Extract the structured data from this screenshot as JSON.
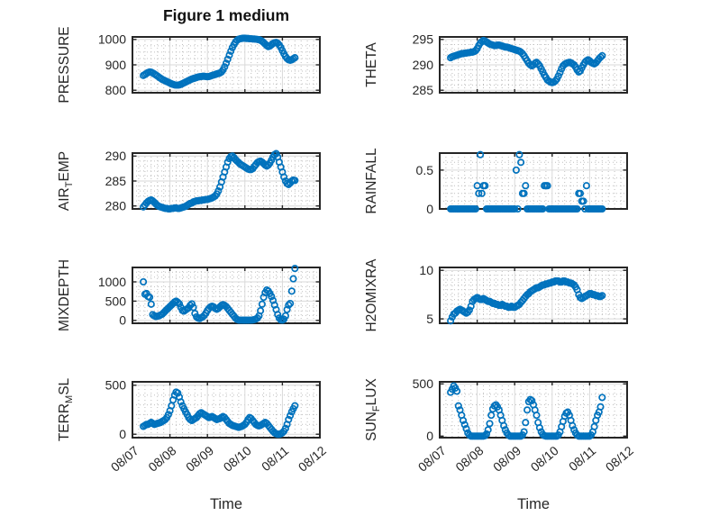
{
  "figure": {
    "title": "Figure 1 medium"
  },
  "colors": {
    "marker": "#0072BD",
    "axis": "#262626",
    "text": "#262626",
    "grid_major": "#d9d9d9",
    "grid_minor": "#bfbfbf"
  },
  "x_axis": {
    "label": "Time",
    "start_hour": 7,
    "step_hours": 1,
    "xlim_hours": [
      0,
      120
    ],
    "xminor_hours": 4,
    "tick_hours": [
      0,
      24,
      48,
      72,
      96,
      120
    ],
    "tick_labels": [
      "08/07",
      "08/08",
      "08/09",
      "08/10",
      "08/11",
      "08/12"
    ]
  },
  "chart_data": [
    {
      "type": "scatter",
      "name": "PRESSURE",
      "ylabel_parts": [
        {
          "text": "PRESSURE",
          "sub": false
        }
      ],
      "ylim": [
        790,
        1010
      ],
      "yticks": [
        800,
        900,
        1000
      ],
      "yminor": 25,
      "values": [
        858,
        862,
        866,
        870,
        872,
        871,
        868,
        864,
        860,
        856,
        851,
        847,
        843,
        840,
        837,
        834,
        831,
        828,
        825,
        823,
        821,
        820,
        820,
        821,
        823,
        826,
        829,
        832,
        835,
        838,
        841,
        844,
        846,
        848,
        850,
        852,
        853,
        854,
        855,
        855,
        854,
        853,
        854,
        856,
        858,
        860,
        862,
        864,
        866,
        868,
        872,
        880,
        892,
        906,
        922,
        938,
        954,
        968,
        980,
        990,
        997,
        1001,
        1003,
        1004,
        1005,
        1005,
        1004,
        1004,
        1003,
        1003,
        1002,
        1002,
        1001,
        1000,
        999,
        997,
        993,
        988,
        982,
        976,
        972,
        974,
        979,
        984,
        987,
        988,
        985,
        978,
        968,
        956,
        944,
        933,
        925,
        920,
        918,
        920,
        924,
        928
      ]
    },
    {
      "type": "scatter",
      "name": "THETA",
      "ylabel_parts": [
        {
          "text": "THETA",
          "sub": false
        }
      ],
      "ylim": [
        284.5,
        295.5
      ],
      "yticks": [
        285,
        290,
        295
      ],
      "yminor": 1,
      "values": [
        291.4,
        291.6,
        291.7,
        291.8,
        291.9,
        292,
        292.1,
        292.2,
        292.2,
        292.3,
        292.3,
        292.4,
        292.4,
        292.5,
        292.5,
        292.6,
        292.8,
        293.2,
        293.8,
        294.3,
        294.6,
        294.8,
        294.7,
        294.5,
        294.3,
        294.1,
        294,
        293.9,
        293.8,
        293.8,
        293.9,
        293.9,
        293.8,
        293.7,
        293.6,
        293.5,
        293.5,
        293.4,
        293.3,
        293.2,
        293.1,
        293,
        292.9,
        292.8,
        292.7,
        292.5,
        292.2,
        291.8,
        291.3,
        290.8,
        290.3,
        290,
        289.8,
        290,
        290.3,
        290.5,
        290.2,
        289.8,
        289.2,
        288.6,
        288,
        287.5,
        287,
        286.8,
        286.6,
        286.5,
        286.6,
        286.8,
        287.2,
        287.8,
        288.5,
        289.2,
        289.8,
        290.1,
        290.3,
        290.4,
        290.5,
        290.4,
        290.2,
        290,
        289.6,
        289,
        288.6,
        288.8,
        289.4,
        290,
        290.5,
        290.8,
        291,
        290.8,
        290.5,
        290.3,
        290.2,
        290.4,
        290.8,
        291.2,
        291.5,
        291.8
      ]
    },
    {
      "type": "scatter",
      "name": "AIR_TEMP",
      "ylabel_parts": [
        {
          "text": "AIR",
          "sub": false
        },
        {
          "text": "T",
          "sub": true
        },
        {
          "text": "EMP",
          "sub": false
        }
      ],
      "ylim": [
        279.4,
        290.6
      ],
      "yticks": [
        280,
        285,
        290
      ],
      "yminor": 1,
      "values": [
        279.8,
        280.2,
        280.6,
        280.9,
        281.1,
        281.2,
        281,
        280.7,
        280.4,
        280.1,
        279.9,
        279.8,
        279.7,
        279.6,
        279.5,
        279.5,
        279.4,
        279.4,
        279.5,
        279.5,
        279.6,
        279.6,
        279.5,
        279.5,
        279.6,
        279.7,
        279.8,
        279.9,
        280.1,
        280.3,
        280.5,
        280.6,
        280.8,
        280.9,
        281,
        281,
        281.1,
        281.1,
        281.2,
        281.2,
        281.3,
        281.3,
        281.4,
        281.5,
        281.6,
        281.8,
        282,
        282.4,
        283,
        283.8,
        284.8,
        285.8,
        286.8,
        287.8,
        288.8,
        289.5,
        289.9,
        290,
        289.7,
        289.3,
        289,
        288.7,
        288.4,
        288.2,
        288,
        287.8,
        287.6,
        287.4,
        287.3,
        287.3,
        287.5,
        287.9,
        288.3,
        288.7,
        288.9,
        289,
        288.8,
        288.5,
        288.2,
        288,
        288.2,
        288.6,
        289.2,
        289.8,
        290.3,
        290.5,
        289.8,
        288.8,
        287.8,
        286.8,
        285.8,
        285,
        284.5,
        284.3,
        284.6,
        285,
        285.2,
        285.1
      ]
    },
    {
      "type": "scatter",
      "name": "RAINFALL",
      "ylabel_parts": [
        {
          "text": "RAINFALL",
          "sub": false
        }
      ],
      "ylim": [
        0,
        0.72
      ],
      "yticks": [
        0,
        0.5
      ],
      "yminor": 0.1,
      "values": [
        0,
        0,
        0,
        0,
        0,
        0,
        0,
        0,
        0,
        0,
        0,
        0,
        0,
        0,
        0,
        0,
        0,
        0.3,
        0.2,
        0.7,
        0.2,
        0.3,
        0.3,
        0,
        0,
        0,
        0,
        0,
        0,
        0,
        0,
        0,
        0,
        0,
        0,
        0,
        0,
        0,
        0,
        0,
        0,
        0,
        0.5,
        0,
        0.7,
        0.6,
        0.2,
        0.2,
        0.3,
        0,
        0,
        0,
        0,
        0,
        0,
        0,
        0,
        0,
        0,
        0,
        0.3,
        0.3,
        0.3,
        0,
        0,
        0,
        0,
        0,
        0,
        0,
        0,
        0,
        0,
        0,
        0,
        0,
        0,
        0,
        0,
        0,
        0,
        0,
        0.2,
        0.2,
        0.1,
        0.1,
        0,
        0.3,
        0,
        0,
        0,
        0,
        0,
        0,
        0,
        0,
        0,
        0
      ]
    },
    {
      "type": "scatter",
      "name": "MIXDEPTH",
      "ylabel_parts": [
        {
          "text": "MIXDEPTH",
          "sub": false
        }
      ],
      "ylim": [
        -75,
        1375
      ],
      "yticks": [
        0,
        500,
        1000
      ],
      "yminor": 125,
      "values": [
        1000,
        680,
        700,
        620,
        600,
        420,
        150,
        120,
        100,
        110,
        120,
        140,
        160,
        200,
        240,
        280,
        320,
        360,
        400,
        440,
        480,
        500,
        470,
        430,
        340,
        260,
        240,
        270,
        300,
        330,
        390,
        430,
        340,
        180,
        90,
        60,
        50,
        70,
        90,
        130,
        190,
        260,
        310,
        350,
        370,
        350,
        310,
        290,
        310,
        350,
        390,
        410,
        390,
        360,
        310,
        260,
        210,
        160,
        110,
        60,
        25,
        10,
        8,
        6,
        5,
        5,
        5,
        5,
        6,
        8,
        12,
        20,
        35,
        60,
        120,
        250,
        420,
        600,
        720,
        790,
        760,
        700,
        620,
        520,
        400,
        280,
        150,
        60,
        15,
        8,
        30,
        120,
        280,
        400,
        440,
        760,
        1080,
        1350
      ]
    },
    {
      "type": "scatter",
      "name": "H2OMIXRA",
      "ylabel_parts": [
        {
          "text": "H2OMIXRA",
          "sub": false
        }
      ],
      "ylim": [
        4.55,
        10.3
      ],
      "yticks": [
        5,
        10
      ],
      "yminor": 0.5,
      "values": [
        4.8,
        5.2,
        5.5,
        5.6,
        5.8,
        5.9,
        6,
        5.9,
        5.8,
        5.7,
        5.6,
        5.7,
        5.9,
        6.3,
        6.8,
        7,
        7.1,
        7.2,
        7.1,
        7,
        7,
        7.1,
        7,
        6.9,
        6.8,
        6.8,
        6.7,
        6.6,
        6.6,
        6.5,
        6.5,
        6.4,
        6.4,
        6.5,
        6.4,
        6.3,
        6.3,
        6.2,
        6.2,
        6.3,
        6.2,
        6.2,
        6.3,
        6.4,
        6.5,
        6.7,
        6.9,
        7.1,
        7.3,
        7.5,
        7.6,
        7.8,
        7.9,
        8,
        8.1,
        8.2,
        8.2,
        8.3,
        8.4,
        8.5,
        8.5,
        8.6,
        8.6,
        8.7,
        8.7,
        8.8,
        8.8,
        8.9,
        8.9,
        8.9,
        8.8,
        8.8,
        8.9,
        8.9,
        8.8,
        8.8,
        8.7,
        8.7,
        8.6,
        8.5,
        8.3,
        8,
        7.5,
        7.2,
        7.1,
        7.2,
        7.3,
        7.4,
        7.5,
        7.6,
        7.6,
        7.5,
        7.5,
        7.4,
        7.4,
        7.3,
        7.3,
        7.4
      ]
    },
    {
      "type": "scatter",
      "name": "TERR_MSL",
      "ylabel_parts": [
        {
          "text": "TERR",
          "sub": false
        },
        {
          "text": "M",
          "sub": true
        },
        {
          "text": "SL",
          "sub": false
        }
      ],
      "ylim": [
        -35,
        535
      ],
      "yticks": [
        0,
        500
      ],
      "yminor": 100,
      "values": [
        80,
        90,
        100,
        100,
        110,
        120,
        110,
        100,
        105,
        110,
        115,
        120,
        130,
        140,
        150,
        170,
        200,
        240,
        290,
        350,
        400,
        430,
        420,
        380,
        330,
        290,
        260,
        230,
        200,
        170,
        150,
        140,
        150,
        160,
        170,
        190,
        210,
        220,
        210,
        200,
        190,
        180,
        170,
        175,
        180,
        170,
        160,
        150,
        155,
        160,
        170,
        180,
        170,
        150,
        130,
        110,
        100,
        90,
        85,
        80,
        75,
        70,
        75,
        80,
        90,
        100,
        120,
        150,
        170,
        160,
        140,
        120,
        100,
        90,
        85,
        90,
        100,
        110,
        120,
        110,
        90,
        70,
        50,
        30,
        15,
        5,
        0,
        0,
        5,
        15,
        30,
        60,
        100,
        150,
        190,
        230,
        260,
        290
      ]
    },
    {
      "type": "scatter",
      "name": "SUN_FLUX",
      "ylabel_parts": [
        {
          "text": "SUN",
          "sub": false
        },
        {
          "text": "F",
          "sub": true
        },
        {
          "text": "LUX",
          "sub": false
        }
      ],
      "ylim": [
        -15,
        520
      ],
      "yticks": [
        0,
        500
      ],
      "yminor": 100,
      "values": [
        420,
        450,
        480,
        460,
        430,
        290,
        250,
        200,
        150,
        110,
        70,
        30,
        10,
        0,
        0,
        0,
        0,
        0,
        0,
        0,
        0,
        0,
        5,
        20,
        60,
        120,
        200,
        260,
        290,
        300,
        280,
        250,
        200,
        150,
        100,
        60,
        30,
        10,
        0,
        0,
        0,
        0,
        0,
        0,
        0,
        0,
        10,
        40,
        130,
        250,
        330,
        350,
        340,
        300,
        250,
        200,
        130,
        80,
        40,
        15,
        5,
        0,
        0,
        0,
        0,
        0,
        0,
        0,
        0,
        10,
        40,
        90,
        140,
        190,
        220,
        230,
        200,
        150,
        100,
        60,
        30,
        10,
        0,
        0,
        0,
        0,
        0,
        0,
        0,
        0,
        10,
        40,
        90,
        150,
        200,
        230,
        280,
        370
      ]
    }
  ]
}
